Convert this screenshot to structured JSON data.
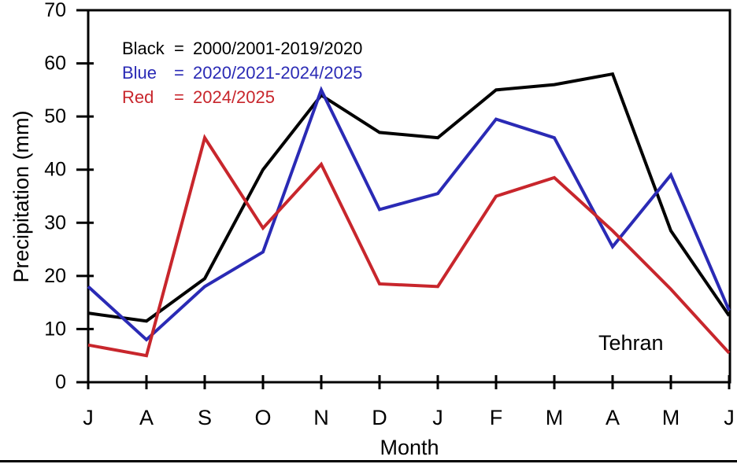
{
  "figure": {
    "ylabel": "Precipitation (mm)",
    "xlabel": "Month",
    "location_label": "Tehran"
  },
  "legend": {
    "eq": "=",
    "rows": [
      {
        "name": "Black",
        "period": "2000/2001-2019/2020",
        "color": "#000000"
      },
      {
        "name": "Blue",
        "period": "2020/2021-2024/2025",
        "color": "#2a2ab5"
      },
      {
        "name": "Red",
        "period": "2024/2025",
        "color": "#c8262c"
      }
    ]
  },
  "chart_data": {
    "type": "line",
    "title": "",
    "xlabel": "Month",
    "ylabel": "Precipitation (mm)",
    "annotation": "Tehran",
    "categories": [
      "J",
      "A",
      "S",
      "O",
      "N",
      "D",
      "J",
      "F",
      "M",
      "A",
      "M",
      "J"
    ],
    "yticks": [
      0,
      10,
      20,
      30,
      40,
      50,
      60,
      70
    ],
    "ylim": [
      0,
      70
    ],
    "grid": false,
    "legend_position": "top-left",
    "series": [
      {
        "name": "2000/2001-2019/2020",
        "color_name": "Black",
        "color": "#000000",
        "values": [
          13,
          11.5,
          19.5,
          40,
          54,
          47,
          46,
          55,
          56,
          58,
          28.5,
          12.5
        ]
      },
      {
        "name": "2020/2021-2024/2025",
        "color_name": "Blue",
        "color": "#2a2ab5",
        "values": [
          18,
          8,
          18,
          24.5,
          55,
          32.5,
          35.5,
          49.5,
          46,
          25.5,
          39,
          13.5
        ]
      },
      {
        "name": "2024/2025",
        "color_name": "Red",
        "color": "#c8262c",
        "values": [
          7,
          5,
          46,
          29,
          41,
          18.5,
          18,
          35,
          38.5,
          28.5,
          17.5,
          5.5
        ]
      }
    ]
  }
}
